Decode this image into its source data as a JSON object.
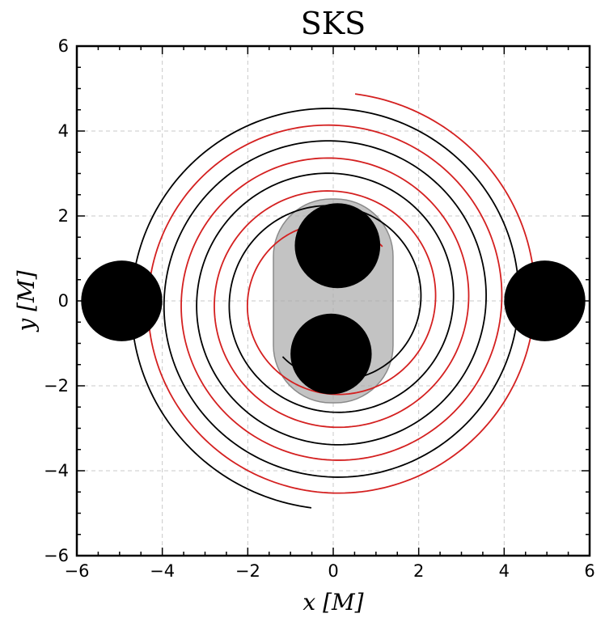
{
  "chart_data": {
    "type": "line",
    "title": "SKS",
    "xlabel": "x [M]",
    "ylabel": "y [M]",
    "xlim": [
      -6,
      6
    ],
    "ylim": [
      -6,
      6
    ],
    "grid": true,
    "x_ticks": [
      "−6",
      "−4",
      "−2",
      "0",
      "2",
      "4",
      "6"
    ],
    "y_ticks": [
      "−6",
      "−4",
      "−2",
      "0",
      "2",
      "4",
      "6"
    ],
    "series": [
      {
        "color": "#000000",
        "spiral": {
          "start": [
            -1.2,
            -1.3
          ],
          "end_radius": 4.9,
          "turns": 4.1,
          "phase_start_deg": 228
        }
      },
      {
        "color": "#d42020",
        "spiral": {
          "start": [
            1.0,
            1.4
          ],
          "end_radius": 4.9,
          "turns": 4.1,
          "phase_start_deg": 48
        }
      }
    ],
    "horizon_region": {
      "color": "#aaaaaa",
      "center": [
        0,
        0
      ],
      "half_width": 1.4,
      "half_height": 2.4
    },
    "black_holes": [
      {
        "x": 0.1,
        "y": 1.3,
        "r": 1.0
      },
      {
        "x": -0.05,
        "y": -1.25,
        "r": 0.95
      },
      {
        "x": -4.95,
        "y": 0.0,
        "r": 0.95
      },
      {
        "x": 4.95,
        "y": 0.0,
        "r": 0.95
      }
    ]
  }
}
